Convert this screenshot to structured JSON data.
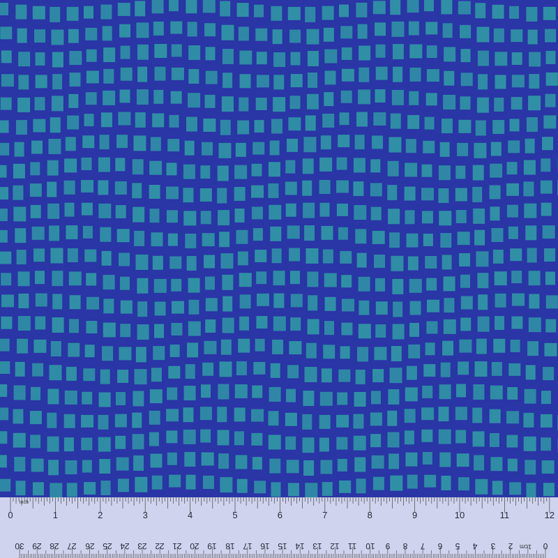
{
  "colors": {
    "background_blue": "#2a35a6",
    "dark_band_blue": "#222b96",
    "square_teal": "#2f96a4",
    "ruler": "#cfd3ee",
    "ruler_ink": "#2a2a3a"
  },
  "ruler": {
    "inch_unit": "inch",
    "cm_unit": "1cm",
    "inch_labels": [
      "0",
      "1",
      "2",
      "3",
      "4",
      "5",
      "6",
      "7",
      "8",
      "9",
      "10",
      "11",
      "12"
    ],
    "cm_labels": [
      "30",
      "29",
      "28",
      "27",
      "26",
      "25",
      "24",
      "23",
      "22",
      "21",
      "20",
      "19",
      "18",
      "17",
      "16",
      "15",
      "14",
      "13",
      "12",
      "11",
      "10",
      "9",
      "8",
      "7",
      "6",
      "5",
      "4",
      "3",
      "2",
      "",
      "0"
    ]
  }
}
